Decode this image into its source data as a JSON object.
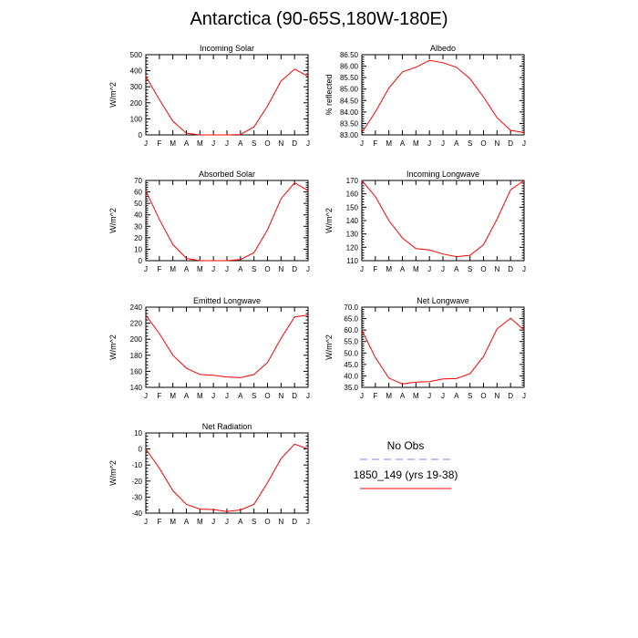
{
  "title": "Antarctica (90-65S,180W-180E)",
  "months": [
    "J",
    "F",
    "M",
    "A",
    "M",
    "J",
    "J",
    "A",
    "S",
    "O",
    "N",
    "D",
    "J"
  ],
  "chart_data": [
    {
      "type": "line",
      "title": "Incoming Solar",
      "ylabel": "W/m^2",
      "ylim": [
        0,
        500
      ],
      "yticks": [
        0,
        100,
        200,
        300,
        400,
        500
      ],
      "ytick_labels": [
        "0",
        "100",
        "200",
        "300",
        "400",
        "500"
      ],
      "series": [
        {
          "name": "1850_149 (yrs 19-38)",
          "values": [
            365,
            220,
            85,
            10,
            0,
            0,
            0,
            2,
            50,
            180,
            335,
            410,
            365
          ]
        }
      ]
    },
    {
      "type": "line",
      "title": "Albedo",
      "ylabel": "% reflected",
      "ylim": [
        83.0,
        86.5
      ],
      "yticks": [
        83.0,
        83.5,
        84.0,
        84.5,
        85.0,
        85.5,
        86.0,
        86.5
      ],
      "ytick_labels": [
        "83.00",
        "83.50",
        "84.00",
        "84.50",
        "85.00",
        "85.50",
        "86.00",
        "86.50"
      ],
      "series": [
        {
          "name": "1850_149 (yrs 19-38)",
          "values": [
            83.1,
            84.0,
            85.05,
            85.75,
            85.95,
            86.25,
            86.15,
            85.95,
            85.45,
            84.65,
            83.75,
            83.2,
            83.1
          ]
        }
      ]
    },
    {
      "type": "line",
      "title": "Absorbed Solar",
      "ylabel": "W/m^2",
      "ylim": [
        0,
        70
      ],
      "yticks": [
        0,
        10,
        20,
        30,
        40,
        50,
        60,
        70
      ],
      "ytick_labels": [
        "0",
        "10",
        "20",
        "30",
        "40",
        "50",
        "60",
        "70"
      ],
      "series": [
        {
          "name": "1850_149 (yrs 19-38)",
          "values": [
            61,
            36,
            14,
            2,
            0,
            0,
            0,
            1,
            7,
            27,
            54,
            68,
            61
          ]
        }
      ]
    },
    {
      "type": "line",
      "title": "Incoming Longwave",
      "ylabel": "W/m^2",
      "ylim": [
        110,
        170
      ],
      "yticks": [
        110,
        120,
        130,
        140,
        150,
        160,
        170
      ],
      "ytick_labels": [
        "110",
        "120",
        "130",
        "140",
        "150",
        "160",
        "170"
      ],
      "series": [
        {
          "name": "1850_149 (yrs 19-38)",
          "values": [
            170,
            158,
            140,
            127,
            119,
            118,
            115,
            113,
            114,
            122,
            141,
            163,
            170
          ]
        }
      ]
    },
    {
      "type": "line",
      "title": "Emitted Longwave",
      "ylabel": "W/m^2",
      "ylim": [
        140,
        240
      ],
      "yticks": [
        140,
        160,
        180,
        200,
        220,
        240
      ],
      "ytick_labels": [
        "140",
        "160",
        "180",
        "200",
        "220",
        "240"
      ],
      "series": [
        {
          "name": "1850_149 (yrs 19-38)",
          "values": [
            230,
            207,
            180,
            164,
            156,
            155,
            153,
            152,
            156,
            171,
            201,
            228,
            230
          ]
        }
      ]
    },
    {
      "type": "line",
      "title": "Net Longwave",
      "ylabel": "W/m^2",
      "ylim": [
        35,
        70
      ],
      "yticks": [
        35,
        40,
        45,
        50,
        55,
        60,
        65,
        70
      ],
      "ytick_labels": [
        "35.0",
        "40.0",
        "45.0",
        "50.0",
        "55.0",
        "60.0",
        "65.0",
        "70.0"
      ],
      "series": [
        {
          "name": "1850_149 (yrs 19-38)",
          "values": [
            60,
            48,
            39,
            36.5,
            37.3,
            37.5,
            38.7,
            38.8,
            41,
            48.5,
            60.5,
            65.2,
            60
          ]
        }
      ]
    },
    {
      "type": "line",
      "title": "Net Radiation",
      "ylabel": "W/m^2",
      "ylim": [
        -40,
        10
      ],
      "yticks": [
        -40,
        -30,
        -20,
        -10,
        0,
        10
      ],
      "ytick_labels": [
        "-40",
        "-30",
        "-20",
        "-10",
        "0",
        "10"
      ],
      "series": [
        {
          "name": "1850_149 (yrs 19-38)",
          "values": [
            0,
            -12,
            -26,
            -34.5,
            -37.5,
            -37.8,
            -39,
            -38,
            -34.5,
            -21,
            -6,
            3,
            0
          ]
        }
      ]
    }
  ],
  "legend": {
    "items": [
      {
        "label": "No Obs",
        "color": "#8080ff",
        "dashed": true
      },
      {
        "label": "1850_149 (yrs 19-38)",
        "color": "#ff0000",
        "dashed": false
      }
    ]
  },
  "colors": {
    "series": "#ff0000",
    "obs": "#8080ff",
    "axis": "#000000"
  }
}
